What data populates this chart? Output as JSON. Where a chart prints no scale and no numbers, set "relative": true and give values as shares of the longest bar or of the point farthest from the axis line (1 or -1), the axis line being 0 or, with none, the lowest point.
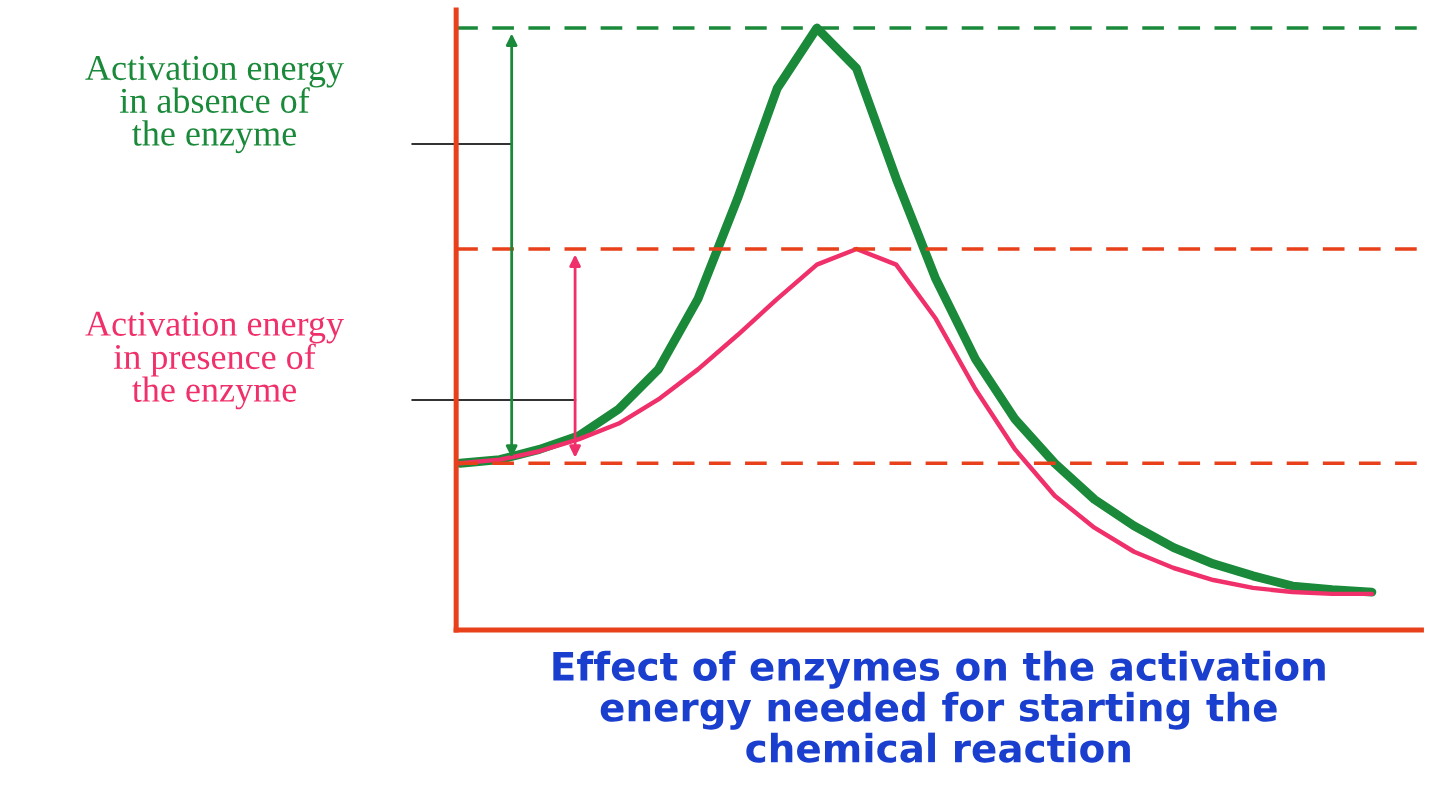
{
  "chart_data": {
    "type": "line",
    "relative": true,
    "xlabel": "Effect of enzymes on the activation\nenergy needed for starting the\nchemical reaction",
    "categories": [
      null,
      null,
      null,
      null,
      null,
      null,
      null,
      null,
      null,
      null,
      null,
      null,
      null,
      null,
      null,
      null,
      null,
      null,
      null,
      null,
      null,
      null,
      null,
      null
    ],
    "series": [
      {
        "color": "#1a8a3a",
        "values": [
          0.277,
          0.283,
          0.3,
          0.323,
          0.367,
          0.433,
          0.55,
          0.717,
          0.9,
          1,
          0.933,
          0.75,
          0.583,
          0.45,
          0.35,
          0.277,
          0.217,
          0.173,
          0.137,
          0.11,
          0.09,
          0.073,
          0.067,
          0.063
        ]
      },
      {
        "color": "#f0306a",
        "values": [
          0.277,
          0.283,
          0.297,
          0.317,
          0.343,
          0.383,
          0.433,
          0.49,
          0.55,
          0.607,
          0.633,
          0.607,
          0.517,
          0.4,
          0.3,
          0.223,
          0.17,
          0.13,
          0.103,
          0.083,
          0.07,
          0.063,
          0.06,
          0.06
        ]
      }
    ],
    "ref_lines": [
      {
        "axis": "y",
        "value": 1,
        "color": "#1a8a3a",
        "line_style": "dashed"
      },
      {
        "axis": "y",
        "value": 0.633,
        "color": "#e8401a",
        "line_style": "dashed"
      },
      {
        "axis": "y",
        "value": 0.277,
        "color": "#e8401a",
        "line_style": "dashed"
      }
    ],
    "annotations": [
      "Activation energy\nin absence of\nthe enzyme",
      "Activation energy\nin presence of\nthe enzyme"
    ],
    "grid": false
  }
}
